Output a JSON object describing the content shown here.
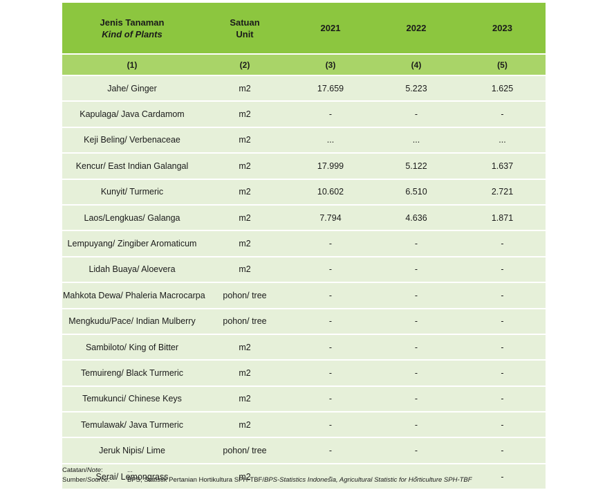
{
  "header": {
    "col1_id": "Jenis Tanaman",
    "col1_en": "Kind of Plants",
    "col2_id": "Satuan",
    "col2_en": "Unit",
    "years": [
      "2021",
      "2022",
      "2023"
    ]
  },
  "col_numbers": [
    "(1)",
    "(2)",
    "(3)",
    "(4)",
    "(5)"
  ],
  "rows": [
    {
      "plant": "Jahe/ Ginger",
      "unit": "m2",
      "v2021": "17.659",
      "v2022": "5.223",
      "v2023": "1.625"
    },
    {
      "plant": "Kapulaga/ Java Cardamom",
      "unit": "m2",
      "v2021": "-",
      "v2022": "-",
      "v2023": "-"
    },
    {
      "plant": "Keji Beling/ Verbenaceae",
      "unit": "m2",
      "v2021": "...",
      "v2022": "...",
      "v2023": "..."
    },
    {
      "plant": "Kencur/ East Indian Galangal",
      "unit": "m2",
      "v2021": "17.999",
      "v2022": "5.122",
      "v2023": "1.637"
    },
    {
      "plant": "Kunyit/ Turmeric",
      "unit": "m2",
      "v2021": "10.602",
      "v2022": "6.510",
      "v2023": "2.721"
    },
    {
      "plant": "Laos/Lengkuas/ Galanga",
      "unit": "m2",
      "v2021": "7.794",
      "v2022": "4.636",
      "v2023": "1.871"
    },
    {
      "plant": "Lempuyang/ Zingiber Aromaticum",
      "unit": "m2",
      "v2021": "-",
      "v2022": "-",
      "v2023": "-"
    },
    {
      "plant": "Lidah Buaya/ Aloevera",
      "unit": "m2",
      "v2021": "-",
      "v2022": "-",
      "v2023": "-"
    },
    {
      "plant": "Mahkota Dewa/ Phaleria Macrocarpa",
      "unit": "pohon/ tree",
      "v2021": "-",
      "v2022": "-",
      "v2023": "-"
    },
    {
      "plant": "Mengkudu/Pace/ Indian Mulberry",
      "unit": "pohon/ tree",
      "v2021": "-",
      "v2022": "-",
      "v2023": "-"
    },
    {
      "plant": "Sambiloto/ King of Bitter",
      "unit": "m2",
      "v2021": "-",
      "v2022": "-",
      "v2023": "-"
    },
    {
      "plant": "Temuireng/ Black Turmeric",
      "unit": "m2",
      "v2021": "-",
      "v2022": "-",
      "v2023": "-"
    },
    {
      "plant": "Temukunci/ Chinese Keys",
      "unit": "m2",
      "v2021": "-",
      "v2022": "-",
      "v2023": "-"
    },
    {
      "plant": "Temulawak/ Java Turmeric",
      "unit": "m2",
      "v2021": "-",
      "v2022": "-",
      "v2023": "-"
    },
    {
      "plant": "Jeruk Nipis/ Lime",
      "unit": "pohon/ tree",
      "v2021": "-",
      "v2022": "-",
      "v2023": "-"
    },
    {
      "plant": "Serai/ Lemongrass",
      "unit": "m2",
      "v2021": "-",
      "v2022": "-",
      "v2023": "-"
    }
  ],
  "footer": {
    "note_label_id": "Catatan/",
    "note_label_en": "Note",
    "note_colon": ":",
    "note_value": "...",
    "source_label_id": "Sumber/",
    "source_label_en": "Source",
    "source_colon": ":",
    "source_value_id": "BPS, Statistik Pertanian Hortikultura SPH-TBF/",
    "source_value_en": "BPS-Statistics Indonesia, Agricultural Statistic for Horticulture SPH-TBF"
  },
  "colors": {
    "header": "#8cc63f",
    "subheader": "#a9d468",
    "row": "#e6f0d9"
  }
}
